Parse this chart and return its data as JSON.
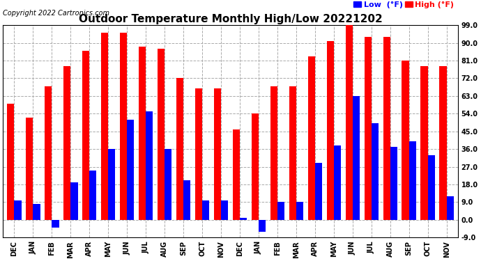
{
  "title": "Outdoor Temperature Monthly High/Low 20221202",
  "copyright": "Copyright 2022 Cartronics.com",
  "months": [
    "DEC",
    "JAN",
    "FEB",
    "MAR",
    "APR",
    "MAY",
    "JUN",
    "JUL",
    "AUG",
    "SEP",
    "OCT",
    "NOV",
    "DEC",
    "JAN",
    "FEB",
    "MAR",
    "APR",
    "MAY",
    "JUN",
    "JUL",
    "AUG",
    "SEP",
    "OCT",
    "NOV"
  ],
  "high": [
    59,
    52,
    68,
    78,
    86,
    95,
    95,
    88,
    87,
    72,
    67,
    67,
    46,
    54,
    68,
    68,
    83,
    91,
    99,
    93,
    93,
    81,
    78,
    78
  ],
  "low": [
    10,
    8,
    -4,
    19,
    25,
    36,
    51,
    55,
    36,
    20,
    10,
    10,
    1,
    -6,
    9,
    9,
    29,
    38,
    63,
    49,
    37,
    40,
    33,
    12
  ],
  "ylim": [
    -9,
    99
  ],
  "yticks": [
    -9.0,
    0.0,
    9.0,
    18.0,
    27.0,
    36.0,
    45.0,
    54.0,
    63.0,
    72.0,
    81.0,
    90.0,
    99.0
  ],
  "bar_width": 0.38,
  "high_color": "#ff0000",
  "low_color": "#0000ff",
  "background_color": "#ffffff",
  "grid_color": "#aaaaaa",
  "title_fontsize": 11,
  "axis_fontsize": 7,
  "copyright_fontsize": 7,
  "legend_fontsize": 8
}
